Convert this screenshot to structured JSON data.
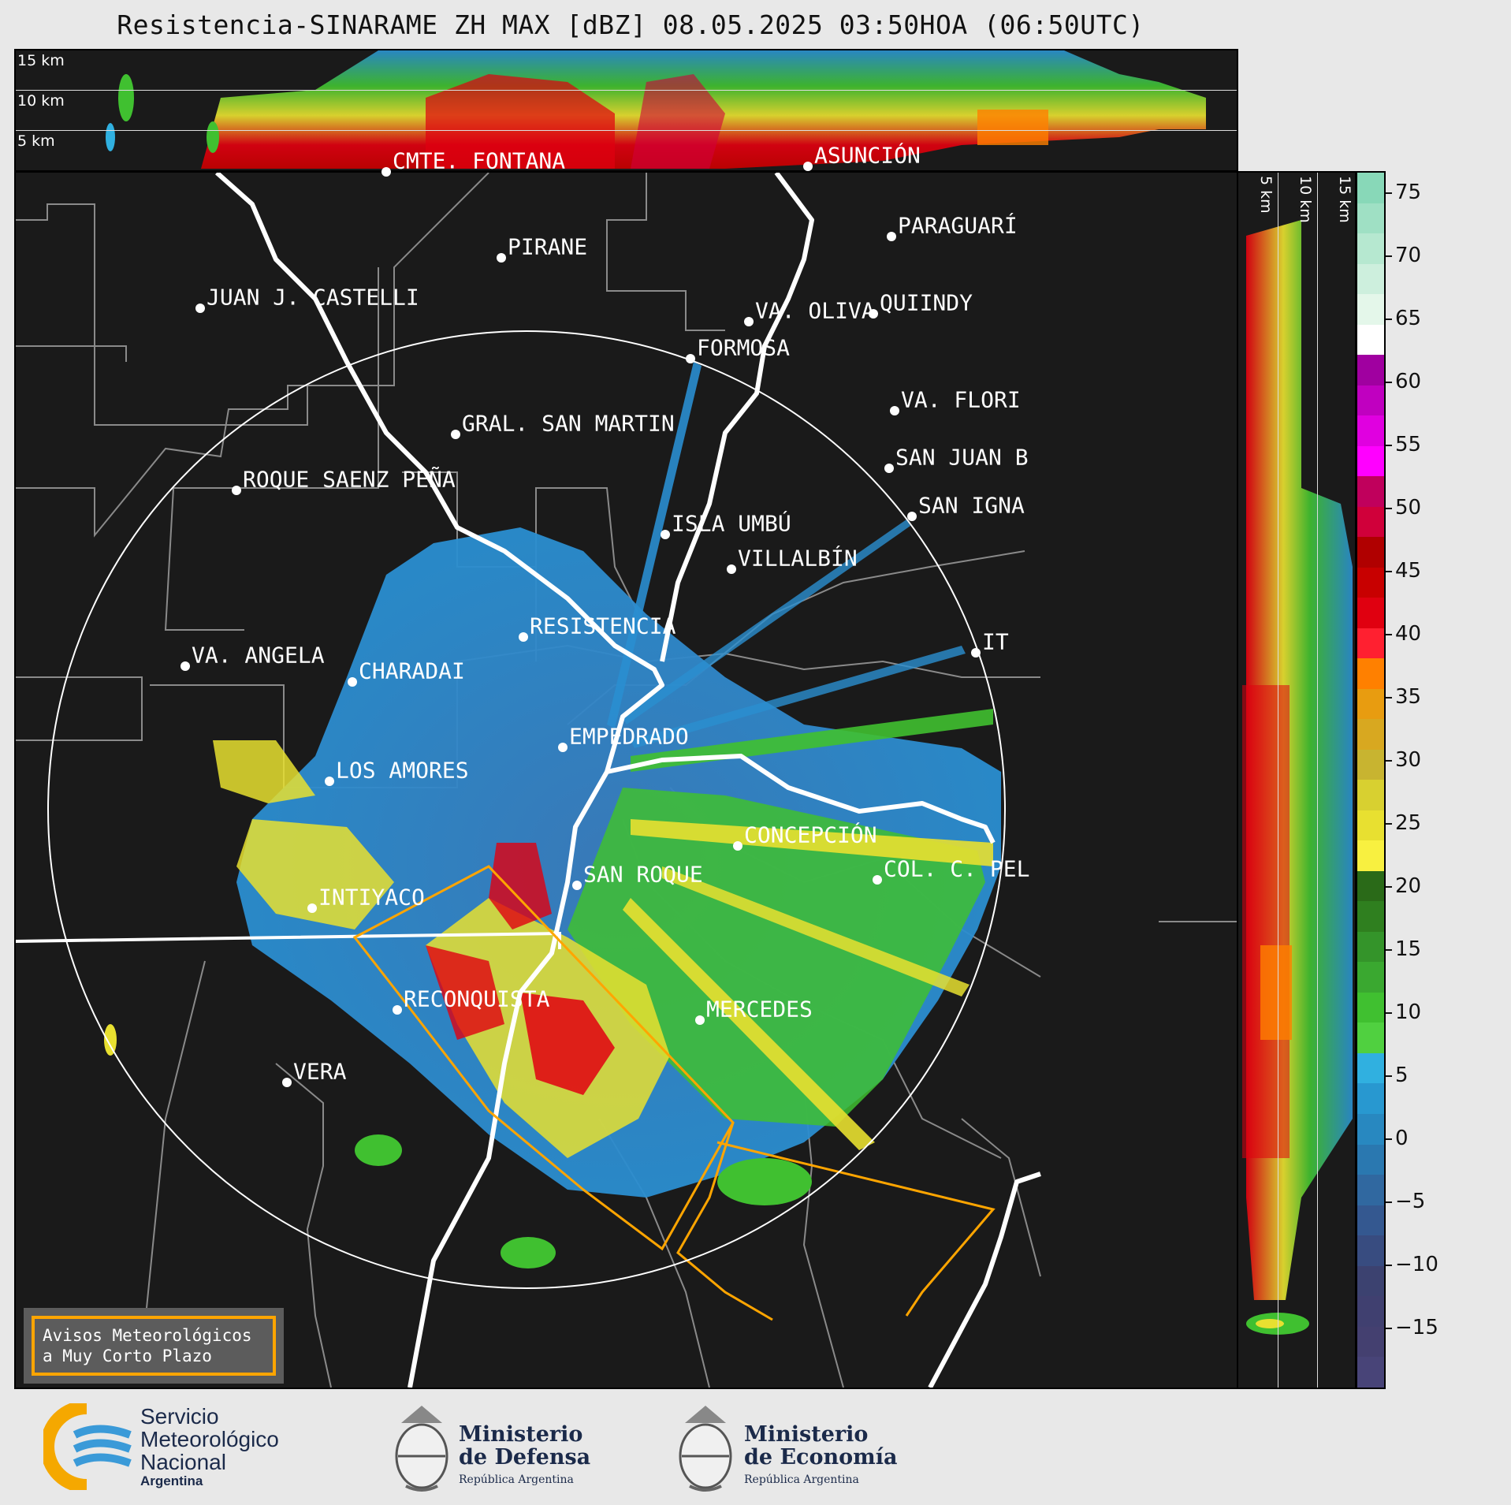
{
  "title": "Resistencia-SINARAME ZH MAX [dBZ] 08.05.2025 03:50HOA (06:50UTC)",
  "top_cross_section": {
    "height_labels": [
      "15 km",
      "10 km",
      "5 km"
    ]
  },
  "right_cross_section": {
    "height_labels": [
      "5 km",
      "10 km",
      "15 km"
    ]
  },
  "colorbar": {
    "unit": "dBZ",
    "ticks": [
      "75",
      "70",
      "65",
      "60",
      "55",
      "50",
      "45",
      "40",
      "35",
      "30",
      "25",
      "20",
      "15",
      "10",
      "5",
      "0",
      "−5",
      "−10",
      "−15"
    ],
    "colors": [
      "#88d8b8",
      "#9fe0c4",
      "#b6e8d0",
      "#cdefdd",
      "#e4f7ea",
      "#ffffff",
      "#a000a0",
      "#c000c0",
      "#e000e0",
      "#ff00ff",
      "#c0005c",
      "#d0003a",
      "#b00000",
      "#c80000",
      "#e00010",
      "#ff2030",
      "#ff8000",
      "#e89c10",
      "#d8a820",
      "#c8b430",
      "#d8d030",
      "#e8e030",
      "#f8f040",
      "#2a6a18",
      "#2f7f1f",
      "#34942a",
      "#3aa830",
      "#40c030",
      "#50d040",
      "#30b0e0",
      "#2898d0",
      "#2888c0",
      "#2a78b0",
      "#3068a0",
      "#345890",
      "#384c80",
      "#3c4270",
      "#404070",
      "#444070",
      "#484478"
    ]
  },
  "cities": [
    {
      "name": "CMTE. FONTANA",
      "pos": [
        490,
        218
      ]
    },
    {
      "name": "ASUNCIÓN",
      "pos": [
        1025,
        211
      ]
    },
    {
      "name": "PARAGUARÍ",
      "pos": [
        1131,
        300
      ]
    },
    {
      "name": "PIRANE",
      "pos": [
        636,
        327
      ]
    },
    {
      "name": "JUAN J. CASTELLI",
      "pos": [
        254,
        391
      ]
    },
    {
      "name": "QUIINDY",
      "pos": [
        1108,
        398
      ]
    },
    {
      "name": "VA. OLIVA",
      "pos": [
        950,
        408
      ]
    },
    {
      "name": "FORMOSA",
      "pos": [
        876,
        455
      ]
    },
    {
      "name": "VA. FLORI",
      "pos": [
        1135,
        521
      ]
    },
    {
      "name": "GRAL. SAN MARTIN",
      "pos": [
        578,
        551
      ]
    },
    {
      "name": "SAN JUAN B",
      "pos": [
        1128,
        594
      ]
    },
    {
      "name": "ROQUE SAENZ PEÑA",
      "pos": [
        300,
        622
      ]
    },
    {
      "name": "SAN IGNA",
      "pos": [
        1157,
        655
      ]
    },
    {
      "name": "ISLA UMBÚ",
      "pos": [
        844,
        678
      ]
    },
    {
      "name": "VILLALBÍN",
      "pos": [
        928,
        722
      ]
    },
    {
      "name": "RESISTENCIA",
      "pos": [
        664,
        808
      ]
    },
    {
      "name": "IT",
      "pos": [
        1238,
        828
      ]
    },
    {
      "name": "VA. ANGELA",
      "pos": [
        235,
        845
      ]
    },
    {
      "name": "CHARADAI",
      "pos": [
        447,
        865
      ]
    },
    {
      "name": "EMPEDRADO",
      "pos": [
        714,
        948
      ]
    },
    {
      "name": "LOS AMORES",
      "pos": [
        418,
        991
      ]
    },
    {
      "name": "CONCEPCIÓN",
      "pos": [
        936,
        1073
      ]
    },
    {
      "name": "SAN ROQUE",
      "pos": [
        732,
        1123
      ]
    },
    {
      "name": "COL. C. PEL",
      "pos": [
        1113,
        1116
      ]
    },
    {
      "name": "INTIYACO",
      "pos": [
        396,
        1152
      ]
    },
    {
      "name": "RECONQUISTA",
      "pos": [
        504,
        1281
      ]
    },
    {
      "name": "MERCEDES",
      "pos": [
        888,
        1294
      ]
    },
    {
      "name": "VERA",
      "pos": [
        364,
        1373
      ]
    }
  ],
  "warning_box": {
    "line1": "Avisos Meteorológicos",
    "line2": "a Muy Corto Plazo"
  },
  "logos": {
    "smn": {
      "line1": "Servicio",
      "line2": "Meteorológico",
      "line3": "Nacional",
      "line4": "Argentina"
    },
    "defensa": {
      "line1": "Ministerio",
      "line2": "de Defensa",
      "line3": "República Argentina"
    },
    "economia": {
      "line1": "Ministerio",
      "line2": "de Economía",
      "line3": "República Argentina"
    }
  }
}
